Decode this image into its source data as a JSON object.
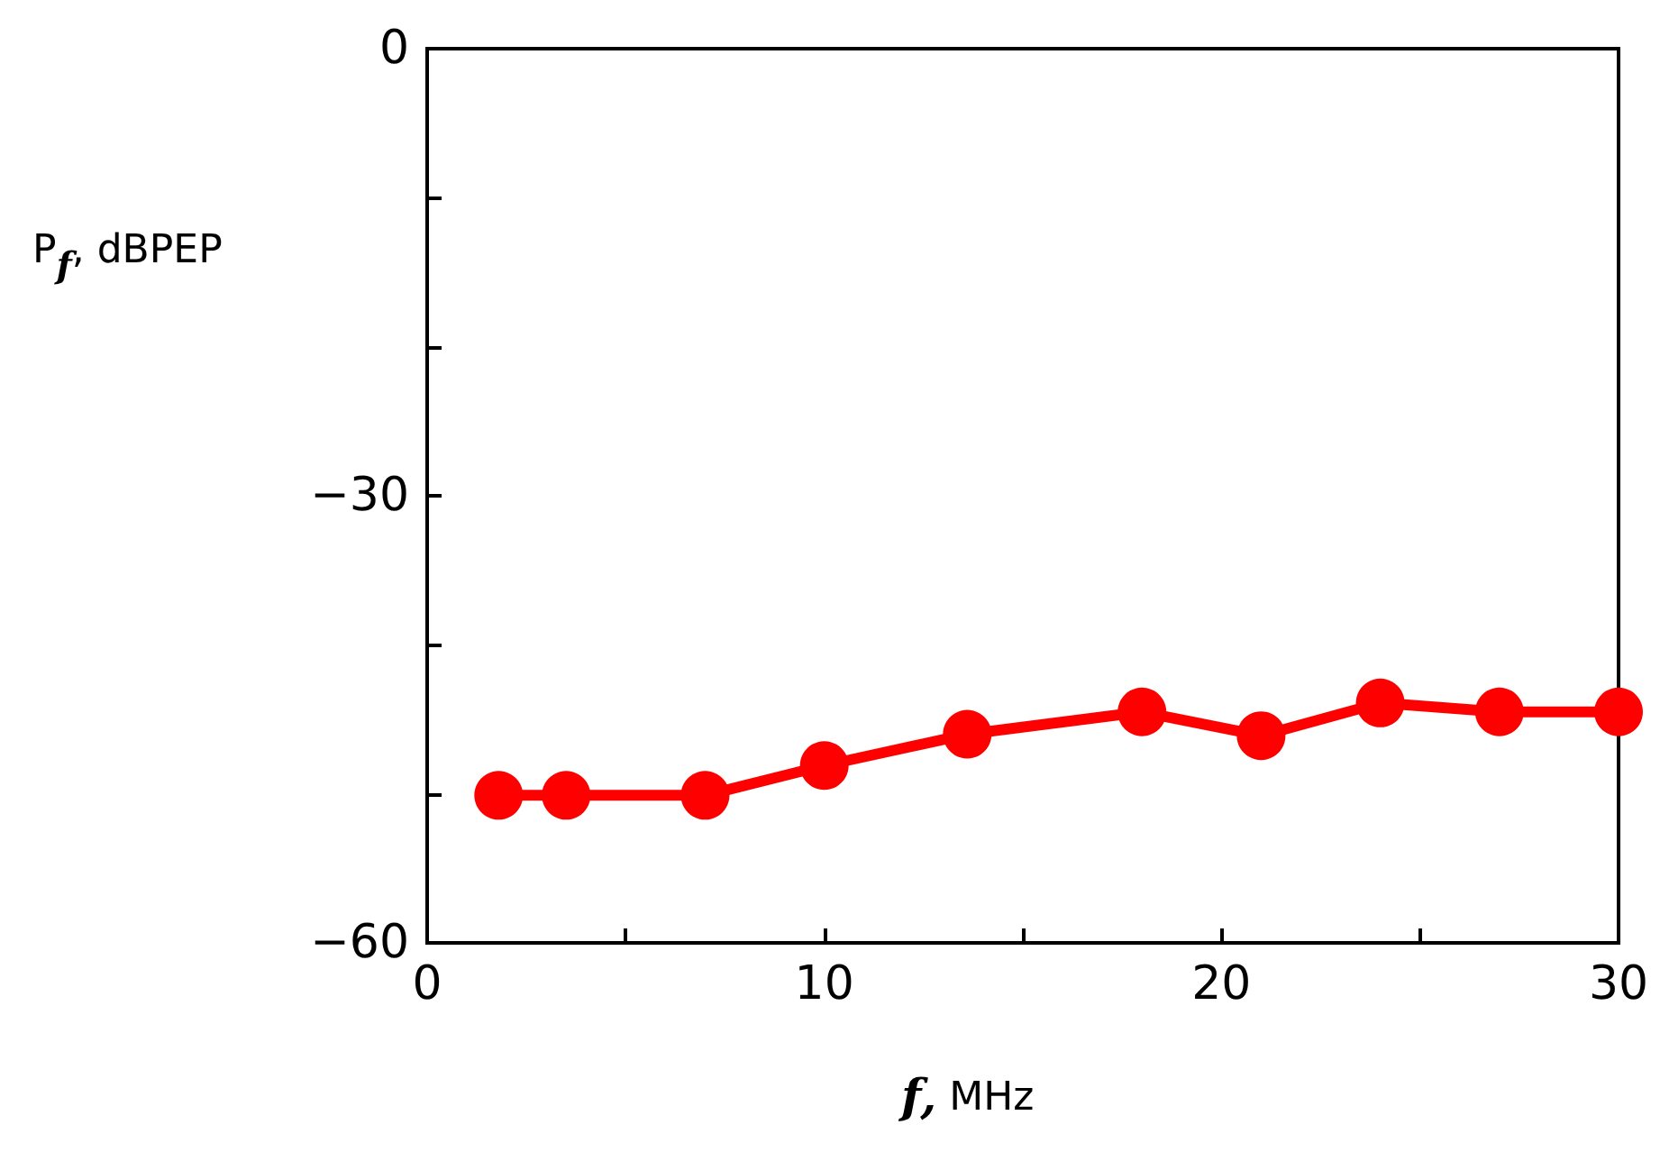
{
  "chart_data": {
    "type": "line",
    "xlabel": "f, MHz",
    "ylabel": "P$_{f}$, dBPEP",
    "x": [
      1.8,
      3.5,
      7.0,
      10.0,
      13.6,
      18.0,
      21.0,
      24.0,
      27.0,
      30.0
    ],
    "series": [
      {
        "color": "#ff0000",
        "values": [
          -50.1,
          -50.1,
          -50.1,
          -48.1,
          -46.0,
          -44.5,
          -46.1,
          -43.9,
          -44.5,
          -44.5
        ]
      }
    ],
    "xlim": [
      0,
      30
    ],
    "xticks": [
      0,
      {
        "value": 5,
        "label": null
      },
      10,
      {
        "value": 15,
        "label": null
      },
      20,
      {
        "value": 25,
        "label": null
      },
      30
    ],
    "ylim": [
      -60,
      0
    ],
    "yticks": [
      -60,
      {
        "value": -50,
        "label": null
      },
      {
        "value": -40,
        "label": null
      },
      -30,
      {
        "value": -20,
        "label": null
      },
      {
        "value": -10,
        "label": null
      },
      0
    ],
    "grid": false,
    "marker": "circle",
    "line_style": "solid"
  }
}
